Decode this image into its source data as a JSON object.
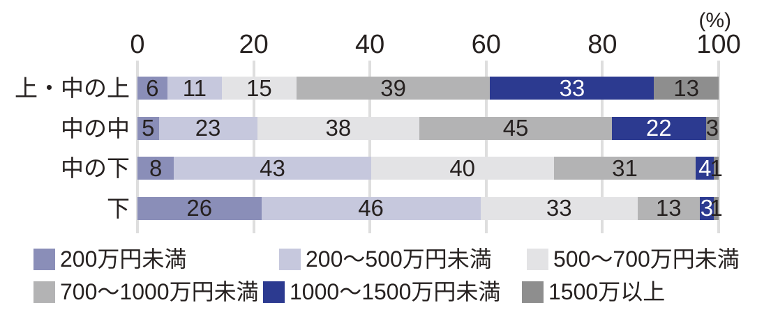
{
  "figure": {
    "unit_label": "(%)"
  },
  "chart_data": {
    "type": "bar",
    "variant": "horizontal-stacked",
    "title": "",
    "unit_label": "(%)",
    "xlim": [
      0,
      100
    ],
    "x_ticks": [
      0,
      20,
      40,
      60,
      80,
      100
    ],
    "grid": "vertical-ticks-only",
    "legend_position": "bottom",
    "normalization": "each bar drawn scaled to 100% of its row total; printed numbers are the raw values",
    "categories": [
      "上・中の上",
      "中の中",
      "中の下",
      "下"
    ],
    "series": [
      {
        "name": "200万円未満",
        "color": "#8a8eb8",
        "label_color": "#262120",
        "values": [
          6,
          5,
          8,
          26
        ]
      },
      {
        "name": "200〜500万円未満",
        "color": "#c6c8dd",
        "label_color": "#262120",
        "values": [
          11,
          23,
          43,
          46
        ]
      },
      {
        "name": "500〜700万円未満",
        "color": "#e3e3e5",
        "label_color": "#262120",
        "values": [
          15,
          38,
          40,
          33
        ]
      },
      {
        "name": "700〜1000万円未満",
        "color": "#b3b3b4",
        "label_color": "#262120",
        "values": [
          39,
          45,
          31,
          13
        ]
      },
      {
        "name": "1000〜1500万円未満",
        "color": "#2c3a90",
        "label_color": "#ffffff",
        "values": [
          33,
          22,
          4,
          3
        ]
      },
      {
        "name": "1500万以上",
        "color": "#8e8e8e",
        "label_color": "#262120",
        "values": [
          13,
          3,
          1,
          1
        ]
      }
    ],
    "legend_rows": [
      [
        "200万円未満",
        "200〜500万円未満",
        "500〜700万円未満"
      ],
      [
        "700〜1000万円未満",
        "1000〜1500万円未満",
        "1500万以上"
      ]
    ]
  },
  "colors": {
    "background": "#ffffff",
    "text": "#262120",
    "gridline": "#dedede"
  }
}
